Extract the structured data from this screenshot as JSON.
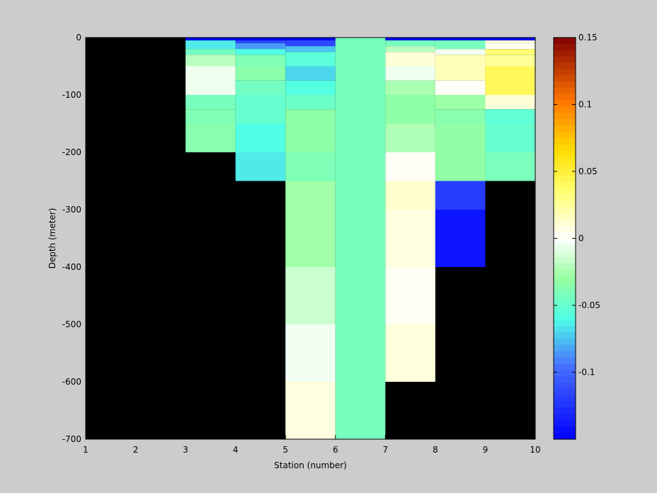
{
  "chart_data": {
    "type": "heatmap",
    "title": "",
    "xlabel": "Station (number)",
    "ylabel": "Depth (meter)",
    "xlim": [
      1,
      10
    ],
    "ylim": [
      -700,
      0
    ],
    "xticks": [
      1,
      2,
      3,
      4,
      5,
      6,
      7,
      8,
      9,
      10
    ],
    "yticks": [
      0,
      -100,
      -200,
      -300,
      -400,
      -500,
      -600,
      -700
    ],
    "background": "#000000",
    "colorbar": {
      "colormap": "jet-with-white-center",
      "clim": [
        -0.15,
        0.15
      ],
      "ticks": [
        0.15,
        0.1,
        0.05,
        0,
        -0.05,
        -0.1
      ]
    },
    "cells": [
      {
        "x0": 3,
        "x1": 4,
        "y0": 0,
        "y1": -5,
        "value": -0.15
      },
      {
        "x0": 3,
        "x1": 4,
        "y0": -5,
        "y1": -20,
        "value": -0.065
      },
      {
        "x0": 3,
        "x1": 4,
        "y0": -20,
        "y1": -30,
        "value": -0.045
      },
      {
        "x0": 3,
        "x1": 4,
        "y0": -30,
        "y1": -50,
        "value": -0.02
      },
      {
        "x0": 3,
        "x1": 4,
        "y0": -50,
        "y1": -100,
        "value": -0.005
      },
      {
        "x0": 3,
        "x1": 4,
        "y0": -100,
        "y1": -125,
        "value": -0.043
      },
      {
        "x0": 3,
        "x1": 4,
        "y0": -125,
        "y1": -150,
        "value": -0.04
      },
      {
        "x0": 3,
        "x1": 4,
        "y0": -150,
        "y1": -200,
        "value": -0.036
      },
      {
        "x0": 4,
        "x1": 5,
        "y0": 0,
        "y1": -5,
        "value": -0.15
      },
      {
        "x0": 4,
        "x1": 5,
        "y0": -5,
        "y1": -10,
        "value": -0.115
      },
      {
        "x0": 4,
        "x1": 5,
        "y0": -10,
        "y1": -20,
        "value": -0.085
      },
      {
        "x0": 4,
        "x1": 5,
        "y0": -20,
        "y1": -30,
        "value": -0.06
      },
      {
        "x0": 4,
        "x1": 5,
        "y0": -30,
        "y1": -50,
        "value": -0.04
      },
      {
        "x0": 4,
        "x1": 5,
        "y0": -50,
        "y1": -75,
        "value": -0.035
      },
      {
        "x0": 4,
        "x1": 5,
        "y0": -75,
        "y1": -100,
        "value": -0.045
      },
      {
        "x0": 4,
        "x1": 5,
        "y0": -100,
        "y1": -150,
        "value": -0.05
      },
      {
        "x0": 4,
        "x1": 5,
        "y0": -150,
        "y1": -200,
        "value": -0.06
      },
      {
        "x0": 4,
        "x1": 5,
        "y0": -200,
        "y1": -250,
        "value": -0.065
      },
      {
        "x0": 5,
        "x1": 6,
        "y0": 0,
        "y1": -5,
        "value": -0.15
      },
      {
        "x0": 5,
        "x1": 6,
        "y0": -5,
        "y1": -15,
        "value": -0.115
      },
      {
        "x0": 5,
        "x1": 6,
        "y0": -15,
        "y1": -25,
        "value": -0.075
      },
      {
        "x0": 5,
        "x1": 6,
        "y0": -25,
        "y1": -50,
        "value": -0.055
      },
      {
        "x0": 5,
        "x1": 6,
        "y0": -50,
        "y1": -75,
        "value": -0.07
      },
      {
        "x0": 5,
        "x1": 6,
        "y0": -75,
        "y1": -100,
        "value": -0.058
      },
      {
        "x0": 5,
        "x1": 6,
        "y0": -100,
        "y1": -125,
        "value": -0.048
      },
      {
        "x0": 5,
        "x1": 6,
        "y0": -125,
        "y1": -200,
        "value": -0.033
      },
      {
        "x0": 5,
        "x1": 6,
        "y0": -200,
        "y1": -250,
        "value": -0.04
      },
      {
        "x0": 5,
        "x1": 6,
        "y0": -250,
        "y1": -400,
        "value": -0.027
      },
      {
        "x0": 5,
        "x1": 6,
        "y0": -400,
        "y1": -500,
        "value": -0.015
      },
      {
        "x0": 5,
        "x1": 6,
        "y0": -500,
        "y1": -600,
        "value": -0.004
      },
      {
        "x0": 5,
        "x1": 6,
        "y0": -600,
        "y1": -700,
        "value": 0.008
      },
      {
        "x0": 6,
        "x1": 7,
        "y0": 0,
        "y1": -700,
        "value": -0.043
      },
      {
        "x0": 7,
        "x1": 8,
        "y0": 0,
        "y1": -5,
        "value": -0.15
      },
      {
        "x0": 7,
        "x1": 8,
        "y0": -5,
        "y1": -15,
        "value": -0.043
      },
      {
        "x0": 7,
        "x1": 8,
        "y0": -15,
        "y1": -25,
        "value": -0.02
      },
      {
        "x0": 7,
        "x1": 8,
        "y0": -25,
        "y1": -50,
        "value": 0.01
      },
      {
        "x0": 7,
        "x1": 8,
        "y0": -50,
        "y1": -75,
        "value": -0.005
      },
      {
        "x0": 7,
        "x1": 8,
        "y0": -75,
        "y1": -100,
        "value": -0.024
      },
      {
        "x0": 7,
        "x1": 8,
        "y0": -100,
        "y1": -150,
        "value": -0.033
      },
      {
        "x0": 7,
        "x1": 8,
        "y0": -150,
        "y1": -200,
        "value": -0.023
      },
      {
        "x0": 7,
        "x1": 8,
        "y0": -200,
        "y1": -250,
        "value": 0.002
      },
      {
        "x0": 7,
        "x1": 8,
        "y0": -250,
        "y1": -300,
        "value": 0.012
      },
      {
        "x0": 7,
        "x1": 8,
        "y0": -300,
        "y1": -400,
        "value": 0.008
      },
      {
        "x0": 7,
        "x1": 8,
        "y0": -400,
        "y1": -500,
        "value": 0.003
      },
      {
        "x0": 7,
        "x1": 8,
        "y0": -500,
        "y1": -600,
        "value": 0.009
      },
      {
        "x0": 8,
        "x1": 9,
        "y0": 0,
        "y1": -5,
        "value": -0.15
      },
      {
        "x0": 8,
        "x1": 9,
        "y0": -5,
        "y1": -20,
        "value": -0.043
      },
      {
        "x0": 8,
        "x1": 9,
        "y0": -20,
        "y1": -30,
        "value": -0.004
      },
      {
        "x0": 8,
        "x1": 9,
        "y0": -30,
        "y1": -75,
        "value": 0.018
      },
      {
        "x0": 8,
        "x1": 9,
        "y0": -75,
        "y1": -100,
        "value": 0.002
      },
      {
        "x0": 8,
        "x1": 9,
        "y0": -100,
        "y1": -125,
        "value": -0.028
      },
      {
        "x0": 8,
        "x1": 9,
        "y0": -125,
        "y1": -150,
        "value": -0.036
      },
      {
        "x0": 8,
        "x1": 9,
        "y0": -150,
        "y1": -250,
        "value": -0.032
      },
      {
        "x0": 8,
        "x1": 9,
        "y0": -250,
        "y1": -300,
        "value": -0.12
      },
      {
        "x0": 8,
        "x1": 9,
        "y0": -300,
        "y1": -400,
        "value": -0.14
      },
      {
        "x0": 9,
        "x1": 10,
        "y0": 0,
        "y1": -5,
        "value": -0.15
      },
      {
        "x0": 9,
        "x1": 10,
        "y0": -5,
        "y1": -10,
        "value": 0.01
      },
      {
        "x0": 9,
        "x1": 10,
        "y0": -10,
        "y1": -20,
        "value": 0.002
      },
      {
        "x0": 9,
        "x1": 10,
        "y0": -20,
        "y1": -30,
        "value": 0.035
      },
      {
        "x0": 9,
        "x1": 10,
        "y0": -30,
        "y1": -50,
        "value": 0.026
      },
      {
        "x0": 9,
        "x1": 10,
        "y0": -50,
        "y1": -100,
        "value": 0.042
      },
      {
        "x0": 9,
        "x1": 10,
        "y0": -100,
        "y1": -125,
        "value": 0.01
      },
      {
        "x0": 9,
        "x1": 10,
        "y0": -125,
        "y1": -150,
        "value": -0.053
      },
      {
        "x0": 9,
        "x1": 10,
        "y0": -150,
        "y1": -200,
        "value": -0.05
      },
      {
        "x0": 9,
        "x1": 10,
        "y0": -200,
        "y1": -250,
        "value": -0.042
      }
    ]
  }
}
